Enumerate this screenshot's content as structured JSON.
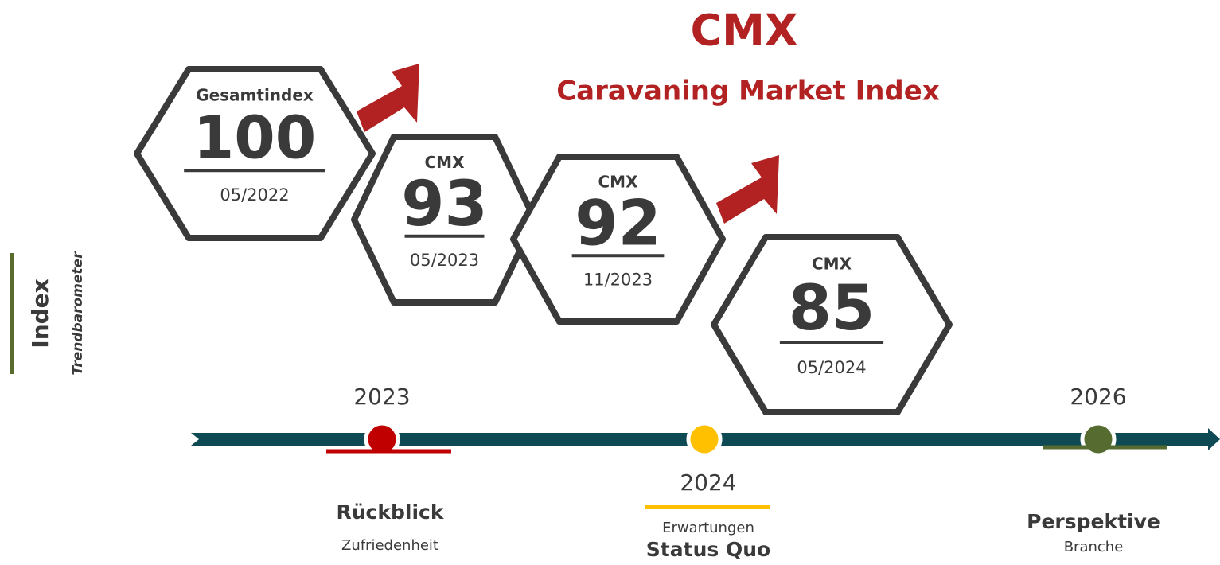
{
  "title": "CMX",
  "subtitle": "Caravaning Market Index",
  "side": {
    "title": "Index",
    "subtitle": "Trendbarometer"
  },
  "hexagons": [
    {
      "label": "Gesamtindex",
      "value": 100,
      "date": "05/2022"
    },
    {
      "label": "CMX",
      "value": 93,
      "date": "05/2023"
    },
    {
      "label": "CMX",
      "value": 92,
      "date": "11/2023"
    },
    {
      "label": "CMX",
      "value": 85,
      "date": "05/2024"
    }
  ],
  "timeline": [
    {
      "year": 2023,
      "title": "Rückblick",
      "subtitle": "Zufriedenheit"
    },
    {
      "year": 2024,
      "title": "Status Quo",
      "subtitle": "Erwartungen"
    },
    {
      "year": 2026,
      "title": "Perspektive",
      "subtitle": "Branche"
    }
  ]
}
